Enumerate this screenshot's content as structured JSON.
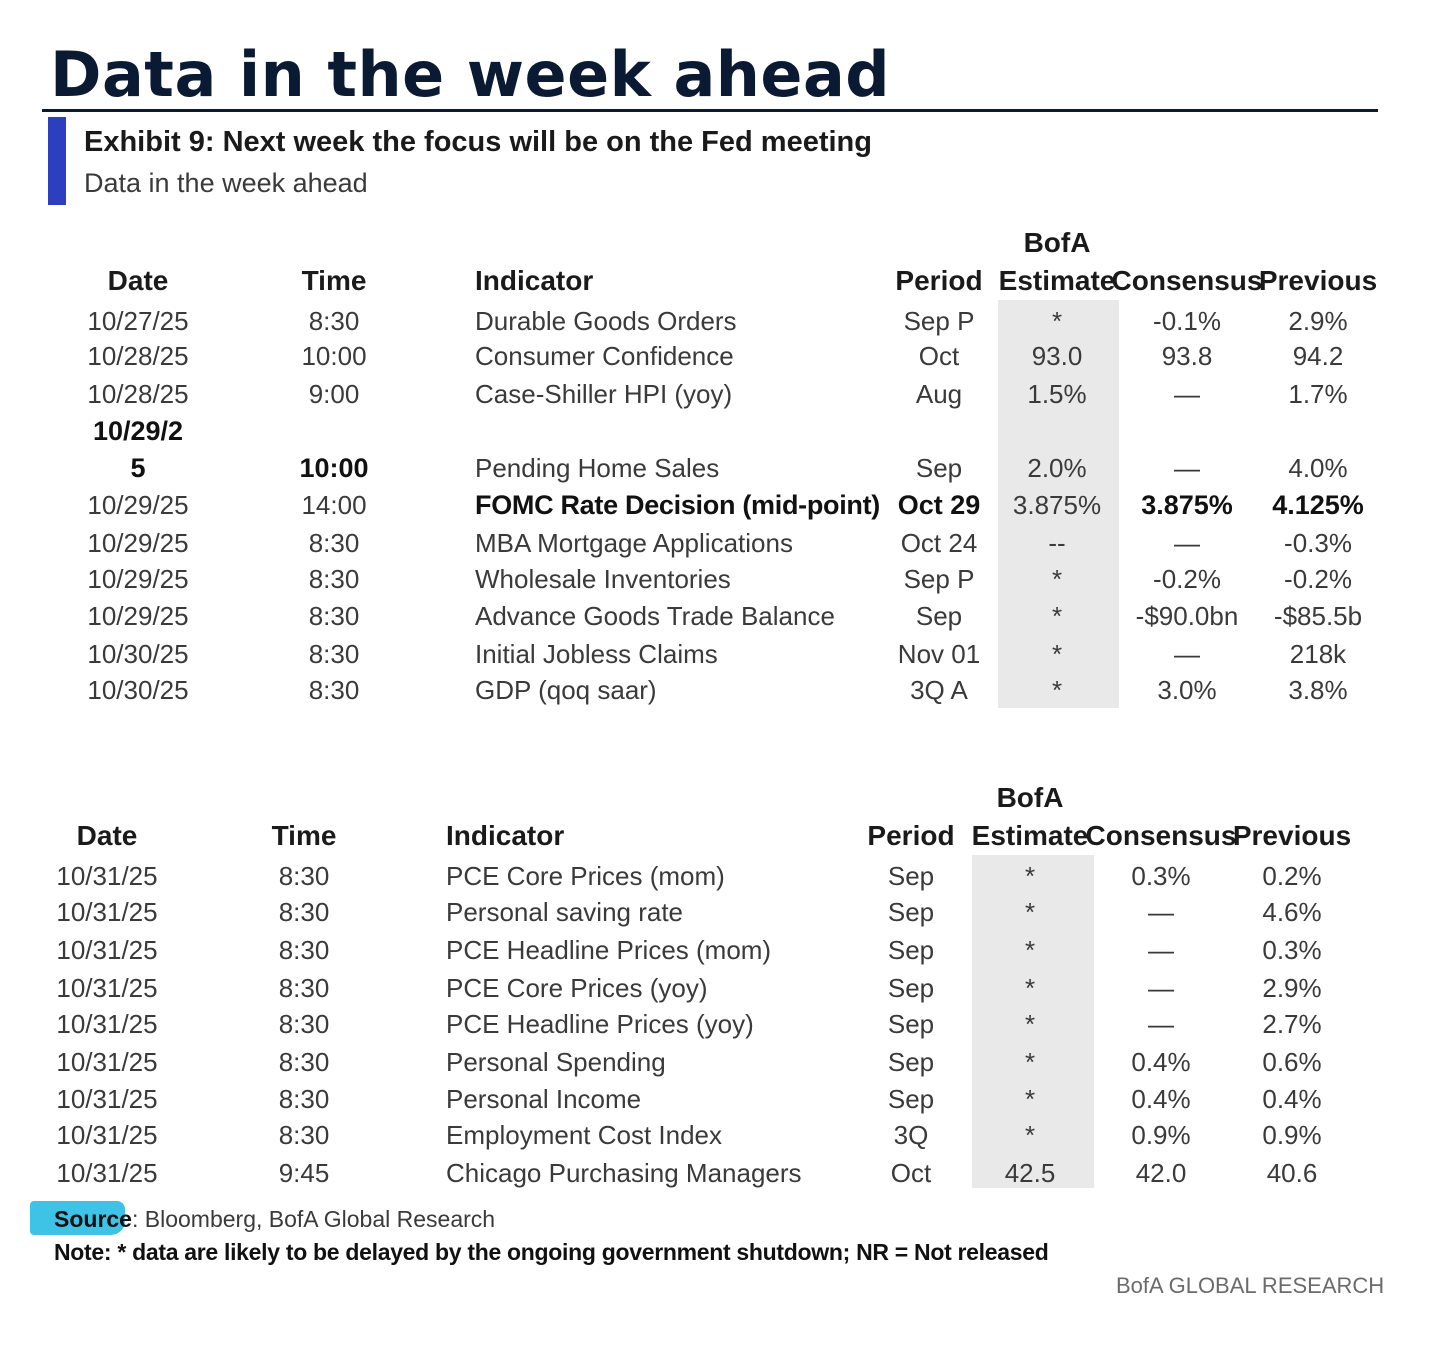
{
  "page": {
    "title": "Data in the week ahead",
    "exhibit_title": "Exhibit 9: Next week the focus will be on the Fed meeting",
    "exhibit_subtitle": "Data in the week ahead"
  },
  "columns": {
    "date": "Date",
    "time": "Time",
    "indicator": "Indicator",
    "period": "Period",
    "bofa_line1": "BofA",
    "bofa_line2": "Estimate",
    "consensus": "Consensus",
    "previous": "Previous"
  },
  "table1": {
    "rows": [
      {
        "date": "10/27/25",
        "time": "8:30",
        "indicator": "Durable Goods Orders",
        "period": "Sep P",
        "bofa": "*",
        "consensus": "-0.1%",
        "previous": "2.9%"
      },
      {
        "date": "10/28/25",
        "time": "10:00",
        "indicator": "Consumer Confidence",
        "period": "Oct",
        "bofa": "93.0",
        "consensus": "93.8",
        "previous": "94.2"
      },
      {
        "date": "10/28/25",
        "time": "9:00",
        "indicator": "Case-Shiller HPI (yoy)",
        "period": "Aug",
        "bofa": "1.5%",
        "consensus": "—",
        "previous": "1.7%"
      },
      {
        "date_line1": "10/29/2",
        "date_line2": "5",
        "time": "10:00",
        "indicator": "Pending Home Sales",
        "period": "Sep",
        "bofa": "2.0%",
        "consensus": "—",
        "previous": "4.0%"
      },
      {
        "date": "10/29/25",
        "time": "14:00",
        "indicator": "FOMC Rate Decision (mid-point)",
        "period": "Oct 29",
        "bofa": "3.875%",
        "consensus": "3.875%",
        "previous": "4.125%"
      },
      {
        "date": "10/29/25",
        "time": "8:30",
        "indicator": "MBA Mortgage Applications",
        "period": "Oct 24",
        "bofa": "--",
        "consensus": "—",
        "previous": "-0.3%"
      },
      {
        "date": "10/29/25",
        "time": "8:30",
        "indicator": "Wholesale Inventories",
        "period": "Sep P",
        "bofa": "*",
        "consensus": "-0.2%",
        "previous": "-0.2%"
      },
      {
        "date": "10/29/25",
        "time": "8:30",
        "indicator": "Advance Goods Trade Balance",
        "period": "Sep",
        "bofa": "*",
        "consensus": "-$90.0bn",
        "previous": "-$85.5b"
      },
      {
        "date": "10/30/25",
        "time": "8:30",
        "indicator": "Initial Jobless Claims",
        "period": "Nov 01",
        "bofa": "*",
        "consensus": "—",
        "previous": "218k"
      },
      {
        "date": "10/30/25",
        "time": "8:30",
        "indicator": "GDP (qoq saar)",
        "period": "3Q A",
        "bofa": "*",
        "consensus": "3.0%",
        "previous": "3.8%"
      }
    ]
  },
  "table2": {
    "rows": [
      {
        "date": "10/31/25",
        "time": "8:30",
        "indicator": "PCE Core Prices (mom)",
        "period": "Sep",
        "bofa": "*",
        "consensus": "0.3%",
        "previous": "0.2%"
      },
      {
        "date": "10/31/25",
        "time": "8:30",
        "indicator": "Personal saving rate",
        "period": "Sep",
        "bofa": "*",
        "consensus": "—",
        "previous": "4.6%"
      },
      {
        "date": "10/31/25",
        "time": "8:30",
        "indicator": "PCE Headline Prices (mom)",
        "period": "Sep",
        "bofa": "*",
        "consensus": "—",
        "previous": "0.3%"
      },
      {
        "date": "10/31/25",
        "time": "8:30",
        "indicator": "PCE Core Prices (yoy)",
        "period": "Sep",
        "bofa": "*",
        "consensus": "—",
        "previous": "2.9%"
      },
      {
        "date": "10/31/25",
        "time": "8:30",
        "indicator": "PCE Headline Prices (yoy)",
        "period": "Sep",
        "bofa": "*",
        "consensus": "—",
        "previous": "2.7%"
      },
      {
        "date": "10/31/25",
        "time": "8:30",
        "indicator": "Personal Spending",
        "period": "Sep",
        "bofa": "*",
        "consensus": "0.4%",
        "previous": "0.6%"
      },
      {
        "date": "10/31/25",
        "time": "8:30",
        "indicator": "Personal Income",
        "period": "Sep",
        "bofa": "*",
        "consensus": "0.4%",
        "previous": "0.4%"
      },
      {
        "date": "10/31/25",
        "time": "8:30",
        "indicator": "Employment Cost Index",
        "period": "3Q",
        "bofa": "*",
        "consensus": "0.9%",
        "previous": "0.9%"
      },
      {
        "date": "10/31/25",
        "time": "9:45",
        "indicator": "Chicago Purchasing Managers",
        "period": "Oct",
        "bofa": "42.5",
        "consensus": "42.0",
        "previous": "40.6"
      }
    ]
  },
  "footer": {
    "source_label": "Source",
    "source_text": ": Bloomberg, BofA Global Research",
    "note": "Note: * data are likely to be delayed by the ongoing government shutdown; NR = Not released",
    "brand": "BofA GLOBAL RESEARCH"
  }
}
